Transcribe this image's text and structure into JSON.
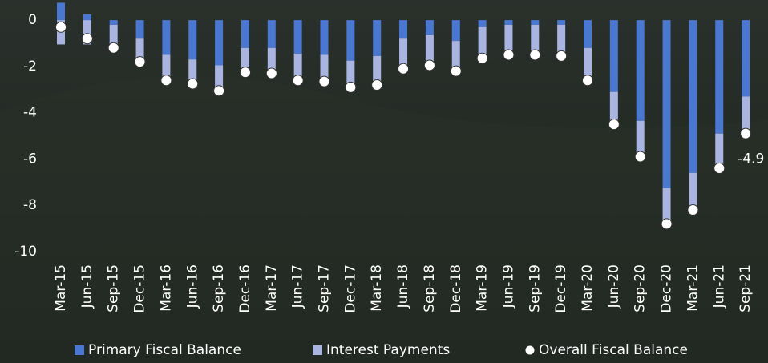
{
  "chart_data": {
    "type": "stacked_bar_dot",
    "categories": [
      "Mar-15",
      "Jun-15",
      "Sep-15",
      "Dec-15",
      "Mar-16",
      "Jun-16",
      "Sep-16",
      "Dec-16",
      "Mar-17",
      "Jun-17",
      "Sep-17",
      "Dec-17",
      "Mar-18",
      "Jun-18",
      "Sep-18",
      "Dec-18",
      "Mar-19",
      "Jun-19",
      "Sep-19",
      "Dec-19",
      "Mar-20",
      "Jun-20",
      "Sep-20",
      "Dec-20",
      "Mar-21",
      "Jun-21",
      "Sep-21"
    ],
    "series": [
      {
        "name": "Primary Fiscal Balance",
        "color": "#4a78d0",
        "kind": "bar",
        "values": [
          0.75,
          0.25,
          -0.2,
          -0.8,
          -1.5,
          -1.7,
          -1.95,
          -1.2,
          -1.2,
          -1.45,
          -1.5,
          -1.75,
          -1.55,
          -0.8,
          -0.65,
          -0.9,
          -0.3,
          -0.2,
          -0.2,
          -0.2,
          -1.2,
          -3.1,
          -4.35,
          -7.25,
          -6.6,
          -4.9,
          -3.3
        ]
      },
      {
        "name": "Interest Payments",
        "color": "#a9b5e0",
        "kind": "bar",
        "values": [
          -1.05,
          -1.05,
          -1.0,
          -1.0,
          -1.1,
          -1.05,
          -1.1,
          -1.05,
          -1.1,
          -1.15,
          -1.15,
          -1.15,
          -1.25,
          -1.3,
          -1.3,
          -1.3,
          -1.35,
          -1.3,
          -1.3,
          -1.35,
          -1.4,
          -1.4,
          -1.55,
          -1.55,
          -1.6,
          -1.5,
          -1.6
        ]
      },
      {
        "name": "Overall Fiscal Balance",
        "color": "#ffffff",
        "kind": "dot",
        "values": [
          -0.3,
          -0.8,
          -1.2,
          -1.8,
          -2.6,
          -2.75,
          -3.05,
          -2.25,
          -2.3,
          -2.6,
          -2.65,
          -2.9,
          -2.8,
          -2.1,
          -1.95,
          -2.2,
          -1.65,
          -1.5,
          -1.5,
          -1.55,
          -2.6,
          -4.5,
          -5.9,
          -8.8,
          -8.2,
          -6.4,
          -4.9
        ]
      }
    ],
    "ylim": [
      -10,
      0.8
    ],
    "yticks": [
      -10,
      -8,
      -6,
      -4,
      -2,
      0
    ],
    "grid": false
  }
}
